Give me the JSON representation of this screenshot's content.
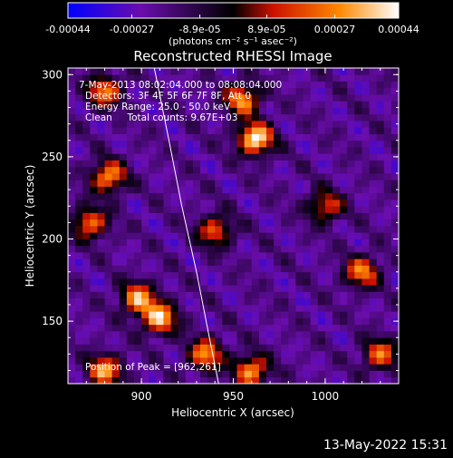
{
  "colorbar": {
    "tick_labels": [
      "-0.00044",
      "-0.00027",
      "-8.9e-05",
      "8.9e-05",
      "0.00027",
      "0.00044"
    ],
    "tick_values": [
      -0.00044,
      -0.00027,
      -8.9e-05,
      8.9e-05,
      0.00027,
      0.00044
    ],
    "range": [
      -0.00044,
      0.00044
    ],
    "unit_label": "(photons cm⁻² s⁻¹ asec⁻²)",
    "colors": [
      "#0000ff",
      "#6a0dad",
      "#000000",
      "#cc1100",
      "#ff8800",
      "#ffffff"
    ]
  },
  "chart_data": {
    "type": "heatmap",
    "title": "Reconstructed RHESSI Image",
    "xlabel": "Heliocentric X (arcsec)",
    "ylabel": "Heliocentric Y (arcsec)",
    "xlim": [
      860,
      1040
    ],
    "ylim": [
      112,
      304
    ],
    "x_ticks": [
      900,
      950,
      1000
    ],
    "y_ticks": [
      150,
      200,
      250,
      300
    ],
    "x_tick_labels": [
      "900",
      "950",
      "1000"
    ],
    "y_tick_labels": [
      "150",
      "200",
      "250",
      "300"
    ],
    "limb": [
      [
        907,
        304
      ],
      [
        915,
        260
      ],
      [
        922,
        220
      ],
      [
        930,
        180
      ],
      [
        937,
        140
      ],
      [
        942,
        112
      ]
    ],
    "sources": [
      {
        "x": 962,
        "y": 261,
        "peak": 0.00044
      },
      {
        "x": 955,
        "y": 285,
        "peak": 0.0003
      },
      {
        "x": 882,
        "y": 238,
        "peak": 0.0003
      },
      {
        "x": 872,
        "y": 210,
        "peak": 0.00025
      },
      {
        "x": 898,
        "y": 164,
        "peak": 0.0003
      },
      {
        "x": 910,
        "y": 152,
        "peak": 0.00035
      },
      {
        "x": 880,
        "y": 120,
        "peak": 0.0003
      },
      {
        "x": 935,
        "y": 130,
        "peak": 0.00028
      },
      {
        "x": 960,
        "y": 120,
        "peak": 0.0003
      },
      {
        "x": 1020,
        "y": 180,
        "peak": 0.00025
      },
      {
        "x": 1030,
        "y": 130,
        "peak": 0.00022
      },
      {
        "x": 1000,
        "y": 220,
        "peak": 0.00018
      },
      {
        "x": 940,
        "y": 205,
        "peak": 0.0002
      },
      {
        "x": 880,
        "y": 290,
        "peak": 0.00025
      }
    ],
    "annotations": [
      "7-May-2013 08:02:04.000 to 08:08:04.000",
      "Detectors: 3F 4F 5F 6F 7F 8F, Att 0",
      "Energy Range: 25.0 - 50.0 keV",
      "Clean     Total counts: 9.67E+03"
    ],
    "peak_label": "Position of Peak = [962,261]"
  },
  "footer_timestamp": "13-May-2022 15:31"
}
